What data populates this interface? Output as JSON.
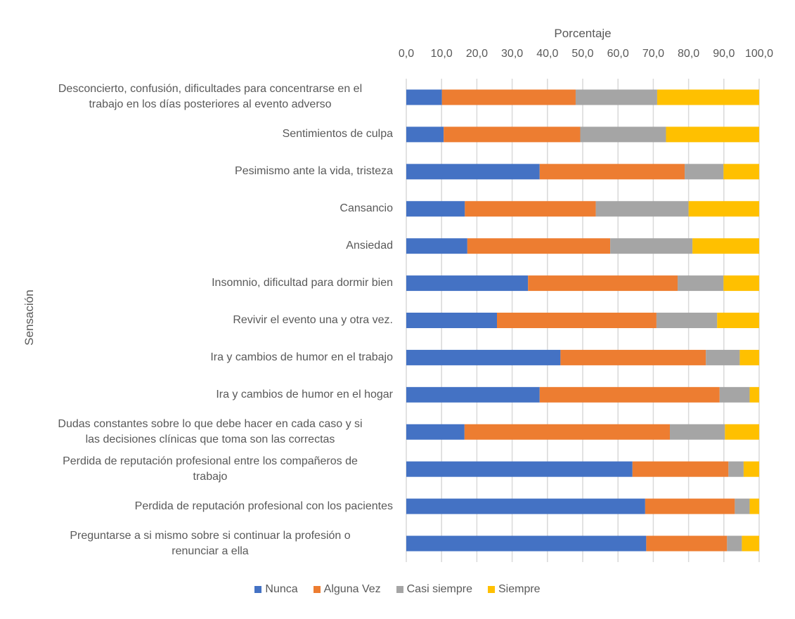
{
  "chart_data": {
    "type": "bar",
    "orientation": "horizontal",
    "stacked": true,
    "title": "",
    "xlabel": "Porcentaje",
    "ylabel": "Sensación",
    "xlim": [
      0,
      100
    ],
    "x_ticks": [
      "0,0",
      "10,0",
      "20,0",
      "30,0",
      "40,0",
      "50,0",
      "60,0",
      "70,0",
      "80,0",
      "90,0",
      "100,0"
    ],
    "grid": true,
    "legend_position": "bottom",
    "categories": [
      "Desconcierto, confusión, dificultades para concentrarse en el trabajo en los días posteriores al evento adverso",
      "Sentimientos de culpa",
      "Pesimismo ante la vida, tristeza",
      "Cansancio",
      "Ansiedad",
      "Insomnio, dificultad para dormir bien",
      "Revivir el evento una y otra vez.",
      "Ira y cambios de humor en el trabajo",
      "Ira y cambios de humor en el hogar",
      "Dudas constantes sobre lo que debe hacer en cada caso y si las decisiones clínicas que toma son las correctas",
      "Perdida de reputación profesional entre los compañeros de trabajo",
      "Perdida de reputación profesional con los pacientes",
      "Preguntarse a si mismo sobre si continuar la profesión o renunciar a ella"
    ],
    "category_lines": [
      [
        "Desconcierto, confusión, dificultades para concentrarse en el",
        "trabajo en los días posteriores al evento adverso"
      ],
      [
        "Sentimientos de culpa"
      ],
      [
        "Pesimismo ante la vida, tristeza"
      ],
      [
        "Cansancio"
      ],
      [
        "Ansiedad"
      ],
      [
        "Insomnio, dificultad para dormir bien"
      ],
      [
        "Revivir el evento una y otra vez."
      ],
      [
        "Ira y cambios de humor en el trabajo"
      ],
      [
        "Ira y cambios de humor en el hogar"
      ],
      [
        "Dudas constantes sobre lo que debe hacer en cada caso y si",
        "las decisiones clínicas que toma son las correctas"
      ],
      [
        "Perdida de reputación profesional entre los compañeros de",
        "trabajo"
      ],
      [
        "Perdida de reputación profesional con los pacientes"
      ],
      [
        "Preguntarse a si mismo sobre si continuar la profesión o",
        "renunciar a ella"
      ]
    ],
    "series": [
      {
        "name": "Nunca",
        "color": "#4472C4",
        "values": [
          10.1,
          10.6,
          37.8,
          16.6,
          17.3,
          34.5,
          25.7,
          43.7,
          37.8,
          16.5,
          64.1,
          67.7,
          68.0
        ]
      },
      {
        "name": "Alguna Vez",
        "color": "#ED7D31",
        "values": [
          37.9,
          38.7,
          41.1,
          37.1,
          40.5,
          42.4,
          45.2,
          41.2,
          51.0,
          58.2,
          27.2,
          25.4,
          22.9
        ]
      },
      {
        "name": "Casi siempre",
        "color": "#A5A5A5",
        "values": [
          23.1,
          24.3,
          11.0,
          26.3,
          23.3,
          13.0,
          17.2,
          9.6,
          8.5,
          15.6,
          4.3,
          4.2,
          4.2
        ]
      },
      {
        "name": "Siempre",
        "color": "#FFC000",
        "values": [
          28.9,
          26.4,
          10.1,
          20.0,
          18.9,
          10.1,
          11.9,
          5.5,
          2.7,
          9.7,
          4.4,
          2.7,
          4.9
        ]
      }
    ]
  }
}
